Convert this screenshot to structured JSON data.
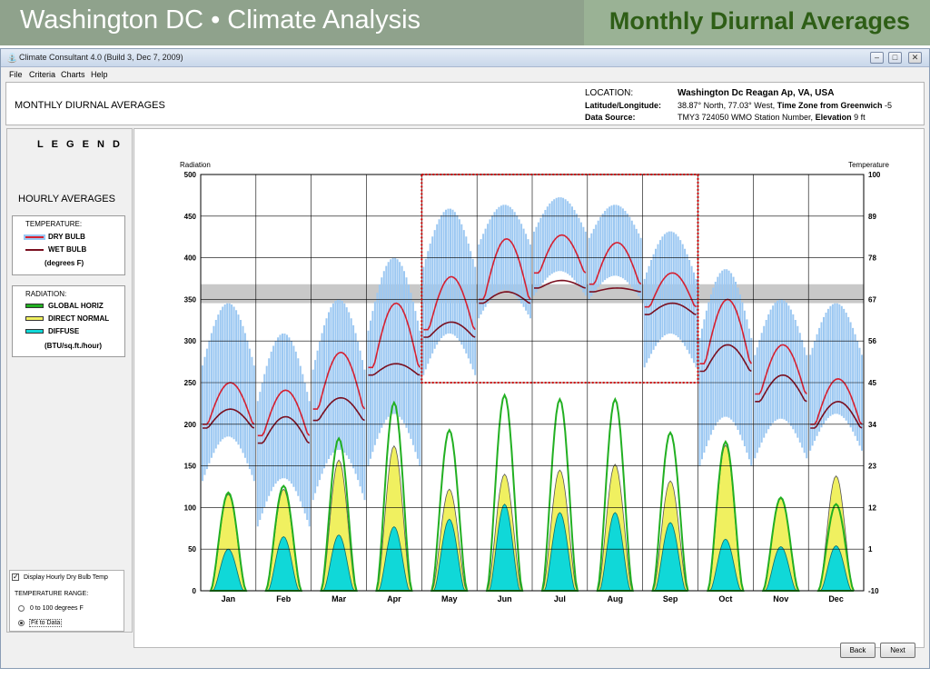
{
  "slide": {
    "title": "Washington DC • Climate Analysis",
    "subtitle": "Monthly Diurnal Averages",
    "colors": {
      "banner_left": "#8fa28c",
      "banner_right": "#9ab295",
      "subtitle": "#2e5e16"
    }
  },
  "window": {
    "title": "Climate Consultant 4.0 (Build 3, Dec 7, 2009)",
    "app_icon": "app-icon",
    "controls": [
      "minimize-icon",
      "maximize-icon",
      "close-icon"
    ]
  },
  "menu": {
    "items": [
      "File",
      "Criteria",
      "Charts",
      "Help"
    ]
  },
  "header": {
    "section_title": "MONTHLY DIURNAL AVERAGES",
    "location_label": "LOCATION:",
    "location_value": "Washington Dc Reagan Ap, VA, USA",
    "latlon_label": "Latitude/Longitude:",
    "latlon_value": "38.87° North, 77.03° West,",
    "timezone_label": "Time Zone from Greenwich",
    "timezone_value": "-5",
    "source_label": "Data Source:",
    "source_value": "TMY3     724050 WMO Station Number,",
    "elevation_label": "Elevation",
    "elevation_value": "9 ft"
  },
  "legend": {
    "heading": "L E G E N D",
    "hourly_heading": "HOURLY AVERAGES",
    "temperature_title": "TEMPERATURE:",
    "dry_bulb": "DRY BULB",
    "wet_bulb": "WET BULB",
    "temp_units": "(degrees F)",
    "radiation_title": "RADIATION:",
    "global_horiz": "GLOBAL HORIZ",
    "direct_normal": "DIRECT NORMAL",
    "diffuse": "DIFFUSE",
    "radiation_units": "(BTU/sq.ft./hour)",
    "colors": {
      "dry_bulb": "#d62030",
      "wet_bulb": "#7a1020",
      "global_horiz": "#22b022",
      "direct_normal": "#f0f060",
      "diffuse": "#10d8d8",
      "dry_bulb_range": "#9cc8f2",
      "comfort_band": "#c8c8c8"
    }
  },
  "options": {
    "display_hourly_checkbox": "Display Hourly Dry Bulb Temp",
    "display_hourly_checked": true,
    "temp_range_label": "TEMPERATURE RANGE:",
    "range_option_1": "0 to 100 degrees F",
    "range_option_2": "Fit to Data",
    "selected_range": "Fit to Data"
  },
  "buttons": {
    "back": "Back",
    "next": "Next"
  },
  "chart_data": {
    "type": "line",
    "left_axis_label": "Radiation",
    "right_axis_label": "Temperature",
    "left_ticks": [
      500,
      450,
      400,
      350,
      300,
      250,
      200,
      150,
      100,
      50,
      0
    ],
    "right_ticks": [
      "100",
      "89",
      "78",
      "67",
      "56",
      "45",
      "34",
      "23",
      "12",
      "1",
      "-10"
    ],
    "ylim_radiation": [
      0,
      500
    ],
    "ylim_temperature": [
      -10,
      100
    ],
    "categories": [
      "Jan",
      "Feb",
      "Mar",
      "Apr",
      "May",
      "Jun",
      "Jul",
      "Aug",
      "Sep",
      "Oct",
      "Nov",
      "Dec"
    ],
    "grid": true,
    "highlight_months": [
      "May",
      "Jun",
      "Jul",
      "Aug",
      "Sep"
    ],
    "comfort_band_temperature": [
      66,
      71
    ],
    "series": [
      {
        "name": "DRY BULB",
        "kind": "temperature",
        "min": [
          34,
          31,
          38,
          49,
          59,
          67,
          74,
          71,
          65,
          50,
          42,
          34
        ],
        "max": [
          45,
          43,
          53,
          66,
          73,
          83,
          84,
          82,
          74,
          67,
          55,
          46
        ]
      },
      {
        "name": "WET BULB",
        "kind": "temperature",
        "min": [
          33,
          29,
          35,
          47,
          57,
          66,
          70,
          69,
          63,
          48,
          40,
          33
        ],
        "max": [
          38,
          36,
          41,
          50,
          61,
          69,
          72,
          70,
          66,
          55,
          47,
          40
        ]
      },
      {
        "name": "GLOBAL HORIZ",
        "kind": "radiation",
        "peaks": [
          118,
          126,
          183,
          226,
          193,
          235,
          230,
          230,
          190,
          179,
          112,
          104
        ]
      },
      {
        "name": "DIRECT NORMAL",
        "kind": "radiation",
        "peaks": [
          116,
          122,
          157,
          174,
          122,
          140,
          145,
          152,
          132,
          175,
          111,
          138
        ]
      },
      {
        "name": "DIFFUSE",
        "kind": "radiation",
        "peaks": [
          50,
          65,
          67,
          77,
          86,
          104,
          94,
          94,
          82,
          62,
          53,
          54
        ]
      }
    ],
    "dry_bulb_hourly_range": {
      "low": [
        19,
        7,
        14,
        23,
        47,
        62,
        68,
        67,
        49,
        23,
        25,
        27
      ],
      "high": [
        66,
        58,
        67,
        78,
        91,
        92,
        94,
        92,
        85,
        75,
        67,
        66
      ]
    }
  }
}
